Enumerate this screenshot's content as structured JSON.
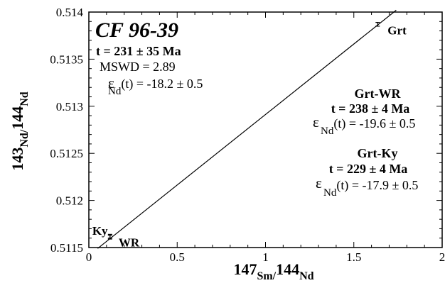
{
  "chart_data": {
    "type": "scatter",
    "xlabel": {
      "sup": "147",
      "main": "Sm/",
      "sup2": "144",
      "main2": "Nd"
    },
    "ylabel": {
      "sup": "143",
      "main": "Nd/",
      "sup2": "144",
      "main2": "Nd"
    },
    "xlim": [
      0,
      2
    ],
    "ylim": [
      0.5115,
      0.514
    ],
    "x_ticks": [
      0,
      0.5,
      1,
      1.5,
      2
    ],
    "x_tick_labels": [
      "0",
      "0.5",
      "1",
      "1.5",
      "2"
    ],
    "y_ticks": [
      0.5115,
      0.512,
      0.5125,
      0.513,
      0.5135,
      0.514
    ],
    "y_tick_labels": [
      "0.5115",
      "0.512",
      "0.5125",
      "0.513",
      "0.5135",
      "0.514"
    ],
    "grid": false,
    "points": [
      {
        "label": "Grt",
        "x": 1.635,
        "y": 0.51387,
        "err": 2e-05
      },
      {
        "label": "Ky",
        "x": 0.12,
        "y": 0.51162,
        "err": 2e-05
      },
      {
        "label": "WR",
        "x": 0.12,
        "y": 0.51161,
        "err": 2e-05
      }
    ],
    "isochron": {
      "x": [
        0.05,
        1.74
      ],
      "y": [
        0.51149,
        0.51402
      ]
    },
    "annotations": {
      "sample": "CF 96-39",
      "age_all": "t = 231 ± 35 Ma",
      "mswd": "MSWD = 2.89",
      "eps_all": "(t) = -18.2 ± 0.5",
      "grt_wr_title": "Grt-WR",
      "grt_wr_age": "t = 238 ± 4 Ma",
      "grt_wr_eps": "(t) = -19.6 ± 0.5",
      "grt_ky_title": "Grt-Ky",
      "grt_ky_age": "t = 229 ± 4 Ma",
      "grt_ky_eps": "(t) = -17.9 ± 0.5",
      "eps_symbol": "ε",
      "eps_sub": "Nd"
    }
  }
}
